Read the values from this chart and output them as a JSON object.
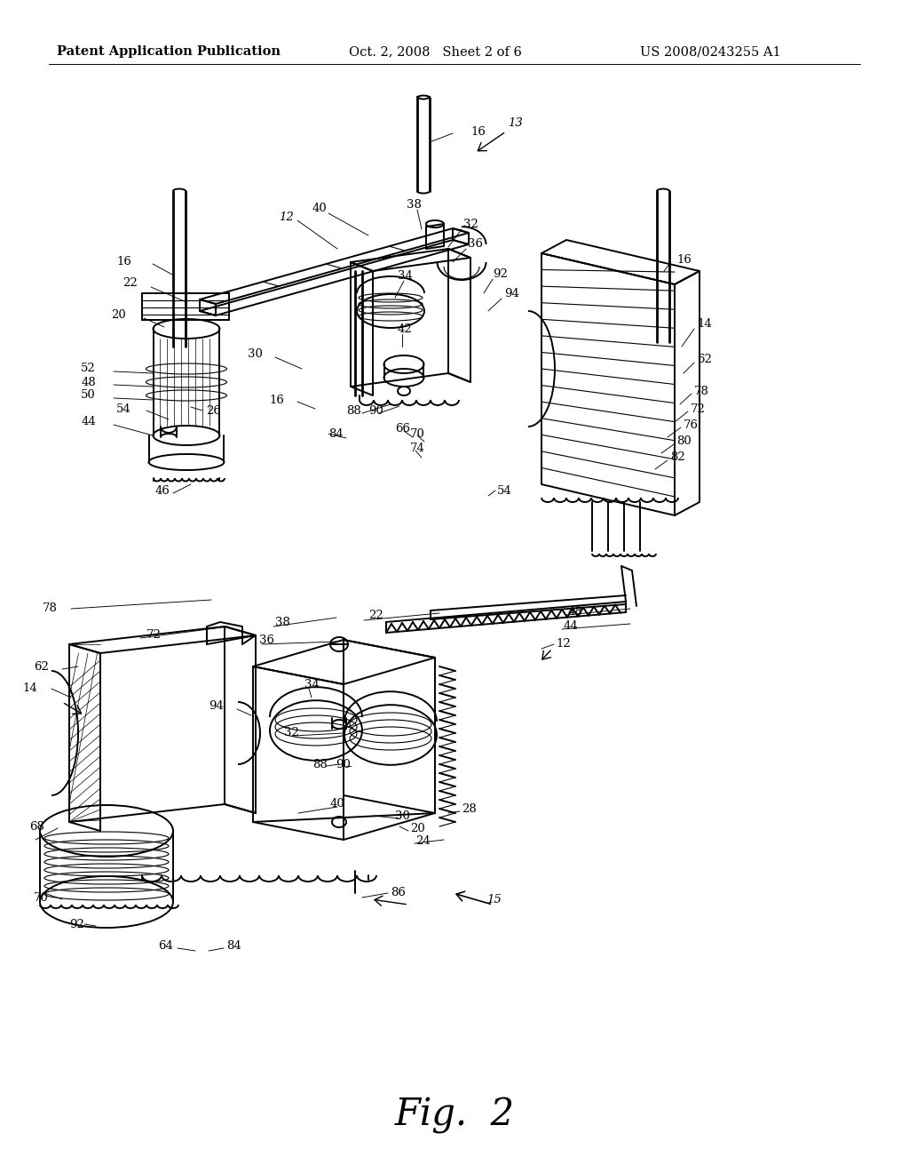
{
  "background_color": "#ffffff",
  "header_left": "Patent Application Publication",
  "header_center": "Oct. 2, 2008   Sheet 2 of 6",
  "header_right": "US 2008/0243255 A1",
  "figure_label": "Fig.  2",
  "header_fontsize": 11,
  "figure_label_fontsize": 30,
  "line_color": "#000000",
  "lw_thick": 2.0,
  "lw_med": 1.4,
  "lw_thin": 0.8,
  "lw_hair": 0.5
}
